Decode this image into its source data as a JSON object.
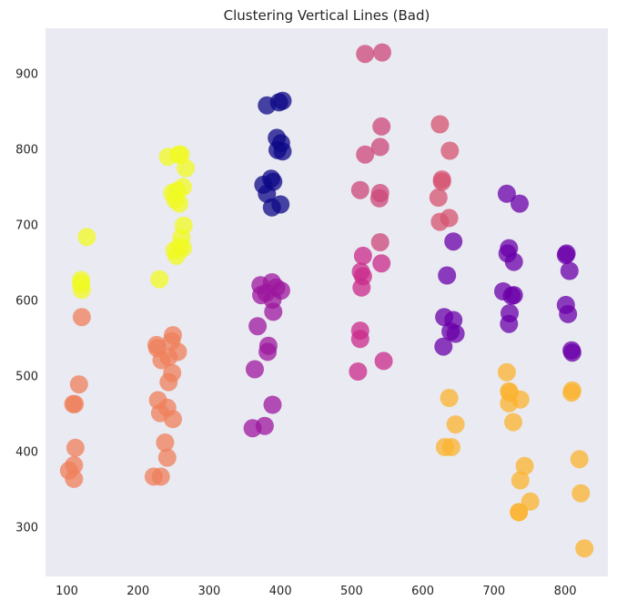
{
  "chart_data": {
    "type": "scatter",
    "title": "Clustering Vertical Lines (Bad)",
    "xlabel": "",
    "ylabel": "",
    "xlim": [
      70,
      860
    ],
    "ylim": [
      235,
      960
    ],
    "grid": false,
    "background": "#eaeaf2",
    "xticks": [
      100,
      200,
      300,
      400,
      500,
      600,
      700,
      800
    ],
    "yticks": [
      300,
      400,
      500,
      600,
      700,
      800,
      900
    ],
    "clusters": [
      {
        "color": "#f0f921",
        "points": [
          [
            128,
            684
          ],
          [
            120,
            627
          ],
          [
            120,
            622
          ],
          [
            121,
            614
          ],
          [
            230,
            628
          ],
          [
            251,
            666
          ],
          [
            258,
            671
          ],
          [
            263,
            669
          ],
          [
            254,
            659
          ],
          [
            261,
            683
          ],
          [
            264,
            699
          ],
          [
            248,
            742
          ],
          [
            255,
            745
          ],
          [
            263,
            750
          ],
          [
            258,
            728
          ],
          [
            252,
            733
          ],
          [
            242,
            790
          ],
          [
            257,
            793
          ],
          [
            260,
            793
          ],
          [
            267,
            775
          ]
        ]
      },
      {
        "color": "#ef7f59",
        "points": [
          [
            121,
            578
          ],
          [
            117,
            489
          ],
          [
            109,
            463
          ],
          [
            111,
            463
          ],
          [
            112,
            405
          ],
          [
            110,
            382
          ],
          [
            103,
            375
          ],
          [
            110,
            364
          ],
          [
            227,
            537
          ],
          [
            226,
            541
          ],
          [
            249,
            554
          ],
          [
            247,
            546
          ],
          [
            256,
            532
          ],
          [
            248,
            504
          ],
          [
            243,
            525
          ],
          [
            233,
            521
          ],
          [
            228,
            468
          ],
          [
            241,
            458
          ],
          [
            238,
            412
          ],
          [
            249,
            443
          ],
          [
            241,
            392
          ],
          [
            231,
            451
          ],
          [
            243,
            492
          ],
          [
            232,
            367
          ],
          [
            222,
            367
          ]
        ]
      },
      {
        "color": "#0d0887",
        "points": [
          [
            381,
            858
          ],
          [
            403,
            864
          ],
          [
            398,
            862
          ],
          [
            395,
            815
          ],
          [
            401,
            808
          ],
          [
            396,
            799
          ],
          [
            403,
            797
          ],
          [
            387,
            761
          ],
          [
            390,
            757
          ],
          [
            376,
            753
          ],
          [
            381,
            741
          ],
          [
            388,
            723
          ],
          [
            400,
            727
          ]
        ]
      },
      {
        "color": "#9c179e",
        "points": [
          [
            388,
            624
          ],
          [
            372,
            620
          ],
          [
            373,
            607
          ],
          [
            380,
            610
          ],
          [
            394,
            617
          ],
          [
            401,
            613
          ],
          [
            389,
            601
          ],
          [
            390,
            585
          ],
          [
            368,
            566
          ],
          [
            383,
            540
          ],
          [
            382,
            532
          ],
          [
            364,
            509
          ],
          [
            389,
            462
          ],
          [
            378,
            434
          ],
          [
            361,
            431
          ]
        ]
      },
      {
        "color": "#cc4778",
        "points": [
          [
            519,
            926
          ],
          [
            543,
            928
          ],
          [
            542,
            830
          ],
          [
            540,
            803
          ],
          [
            519,
            793
          ],
          [
            512,
            746
          ],
          [
            540,
            742
          ],
          [
            539,
            735
          ],
          [
            540,
            677
          ]
        ]
      },
      {
        "color": "#c9298a",
        "points": [
          [
            516,
            659
          ],
          [
            513,
            638
          ],
          [
            516,
            632
          ],
          [
            542,
            649
          ],
          [
            514,
            617
          ],
          [
            512,
            560
          ],
          [
            512,
            549
          ],
          [
            545,
            520
          ],
          [
            509,
            506
          ]
        ]
      },
      {
        "color": "#d5536f",
        "points": [
          [
            624,
            833
          ],
          [
            638,
            798
          ],
          [
            627,
            760
          ],
          [
            627,
            757
          ],
          [
            622,
            736
          ],
          [
            637,
            709
          ],
          [
            624,
            704
          ]
        ]
      },
      {
        "color": "#6a00a8",
        "points": [
          [
            643,
            678
          ],
          [
            634,
            633
          ],
          [
            630,
            578
          ],
          [
            639,
            559
          ],
          [
            643,
            574
          ],
          [
            646,
            556
          ],
          [
            629,
            539
          ],
          [
            718,
            741
          ],
          [
            736,
            728
          ],
          [
            721,
            669
          ],
          [
            719,
            662
          ],
          [
            728,
            651
          ],
          [
            713,
            612
          ],
          [
            725,
            606
          ],
          [
            728,
            607
          ],
          [
            722,
            583
          ],
          [
            721,
            569
          ],
          [
            802,
            662
          ],
          [
            801,
            660
          ],
          [
            806,
            639
          ],
          [
            801,
            594
          ],
          [
            804,
            582
          ],
          [
            809,
            534
          ],
          [
            810,
            531
          ]
        ]
      },
      {
        "color": "#fbb32f",
        "points": [
          [
            637,
            471
          ],
          [
            646,
            436
          ],
          [
            631,
            406
          ],
          [
            640,
            406
          ],
          [
            718,
            505
          ],
          [
            721,
            480
          ],
          [
            722,
            478
          ],
          [
            721,
            464
          ],
          [
            737,
            469
          ],
          [
            727,
            439
          ],
          [
            743,
            381
          ],
          [
            737,
            362
          ],
          [
            751,
            334
          ],
          [
            735,
            320
          ],
          [
            735,
            320
          ],
          [
            810,
            481
          ],
          [
            809,
            478
          ],
          [
            820,
            390
          ],
          [
            822,
            345
          ],
          [
            827,
            272
          ]
        ]
      }
    ]
  }
}
